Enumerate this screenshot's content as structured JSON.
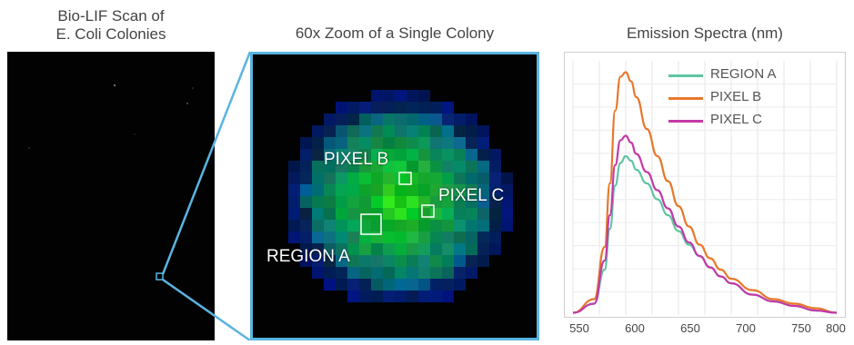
{
  "panels": {
    "scan_title": "Bio-LIF Scan of\nE. Coli Colonies",
    "zoom_title": "60x Zoom of a Single Colony",
    "zoom_labels": {
      "pixel_b": "PIXEL B",
      "pixel_c": "PIXEL C",
      "region_a": "REGION A"
    }
  },
  "colors": {
    "zoom_border": "#5ab4e0",
    "region_a": "#5fc4a3",
    "pixel_b": "#e8782a",
    "pixel_c": "#c33aa8"
  },
  "chart_data": {
    "type": "line",
    "title": "Emission Spectra (nm)",
    "xlabel": "",
    "ylabel": "",
    "xlim": [
      550,
      800
    ],
    "ylim": [
      0,
      1.12
    ],
    "xticks": [
      "550",
      "600",
      "650",
      "700",
      "750",
      "800"
    ],
    "grid": true,
    "legend_position": "top-right",
    "series": [
      {
        "name": "REGION A",
        "color": "#5fc4a3",
        "x": [
          550,
          570,
          580,
          585,
          590,
          595,
          600,
          605,
          610,
          620,
          630,
          640,
          650,
          660,
          670,
          680,
          690,
          700,
          720,
          740,
          760,
          780,
          800
        ],
        "y": [
          0.01,
          0.05,
          0.2,
          0.38,
          0.57,
          0.67,
          0.7,
          0.68,
          0.64,
          0.58,
          0.51,
          0.44,
          0.37,
          0.31,
          0.26,
          0.21,
          0.17,
          0.14,
          0.09,
          0.06,
          0.04,
          0.02,
          0.01
        ]
      },
      {
        "name": "PIXEL B",
        "color": "#e8782a",
        "x": [
          550,
          570,
          580,
          585,
          590,
          595,
          600,
          605,
          610,
          620,
          630,
          640,
          650,
          660,
          670,
          680,
          690,
          700,
          720,
          740,
          760,
          780,
          800
        ],
        "y": [
          0.01,
          0.07,
          0.3,
          0.58,
          0.9,
          1.05,
          1.07,
          1.03,
          0.96,
          0.82,
          0.7,
          0.59,
          0.48,
          0.39,
          0.31,
          0.25,
          0.2,
          0.16,
          0.11,
          0.07,
          0.05,
          0.03,
          0.01
        ]
      },
      {
        "name": "PIXEL C",
        "color": "#c33aa8",
        "x": [
          550,
          570,
          580,
          585,
          590,
          595,
          600,
          605,
          610,
          620,
          630,
          640,
          650,
          660,
          670,
          680,
          690,
          700,
          720,
          740,
          760,
          780,
          800
        ],
        "y": [
          0.01,
          0.05,
          0.24,
          0.44,
          0.66,
          0.77,
          0.79,
          0.76,
          0.71,
          0.63,
          0.55,
          0.47,
          0.39,
          0.32,
          0.26,
          0.21,
          0.17,
          0.14,
          0.09,
          0.06,
          0.04,
          0.02,
          0.01
        ]
      }
    ]
  }
}
